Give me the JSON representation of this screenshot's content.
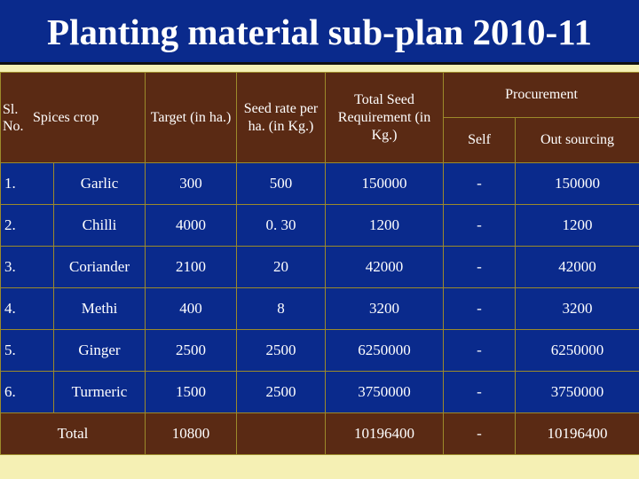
{
  "title": "Planting material sub-plan 2010-11",
  "headers": {
    "sl": "Sl. No.",
    "crop": "Spices crop",
    "target": "Target (in ha.)",
    "seed_rate": "Seed rate per ha. (in Kg.)",
    "total_seed": "Total Seed Requirement (in Kg.)",
    "procurement": "Procurement",
    "self": "Self",
    "out_sourcing": "Out sourcing"
  },
  "rows": [
    {
      "sl": "1.",
      "crop": "Garlic",
      "target": "300",
      "seed_rate": "500",
      "total": "150000",
      "self": "-",
      "out": "150000"
    },
    {
      "sl": "2.",
      "crop": "Chilli",
      "target": "4000",
      "seed_rate": "0. 30",
      "total": "1200",
      "self": "-",
      "out": "1200"
    },
    {
      "sl": "3.",
      "crop": "Coriander",
      "target": "2100",
      "seed_rate": "20",
      "total": "42000",
      "self": "-",
      "out": "42000"
    },
    {
      "sl": "4.",
      "crop": "Methi",
      "target": "400",
      "seed_rate": "8",
      "total": "3200",
      "self": "-",
      "out": "3200"
    },
    {
      "sl": "5.",
      "crop": "Ginger",
      "target": "2500",
      "seed_rate": "2500",
      "total": "6250000",
      "self": "-",
      "out": "6250000"
    },
    {
      "sl": "6.",
      "crop": "Turmeric",
      "target": "1500",
      "seed_rate": "2500",
      "total": "3750000",
      "self": "-",
      "out": "3750000"
    }
  ],
  "total_row": {
    "label": "Total",
    "target": "10800",
    "seed_rate": "",
    "total": "10196400",
    "self": "-",
    "out": "10196400"
  }
}
